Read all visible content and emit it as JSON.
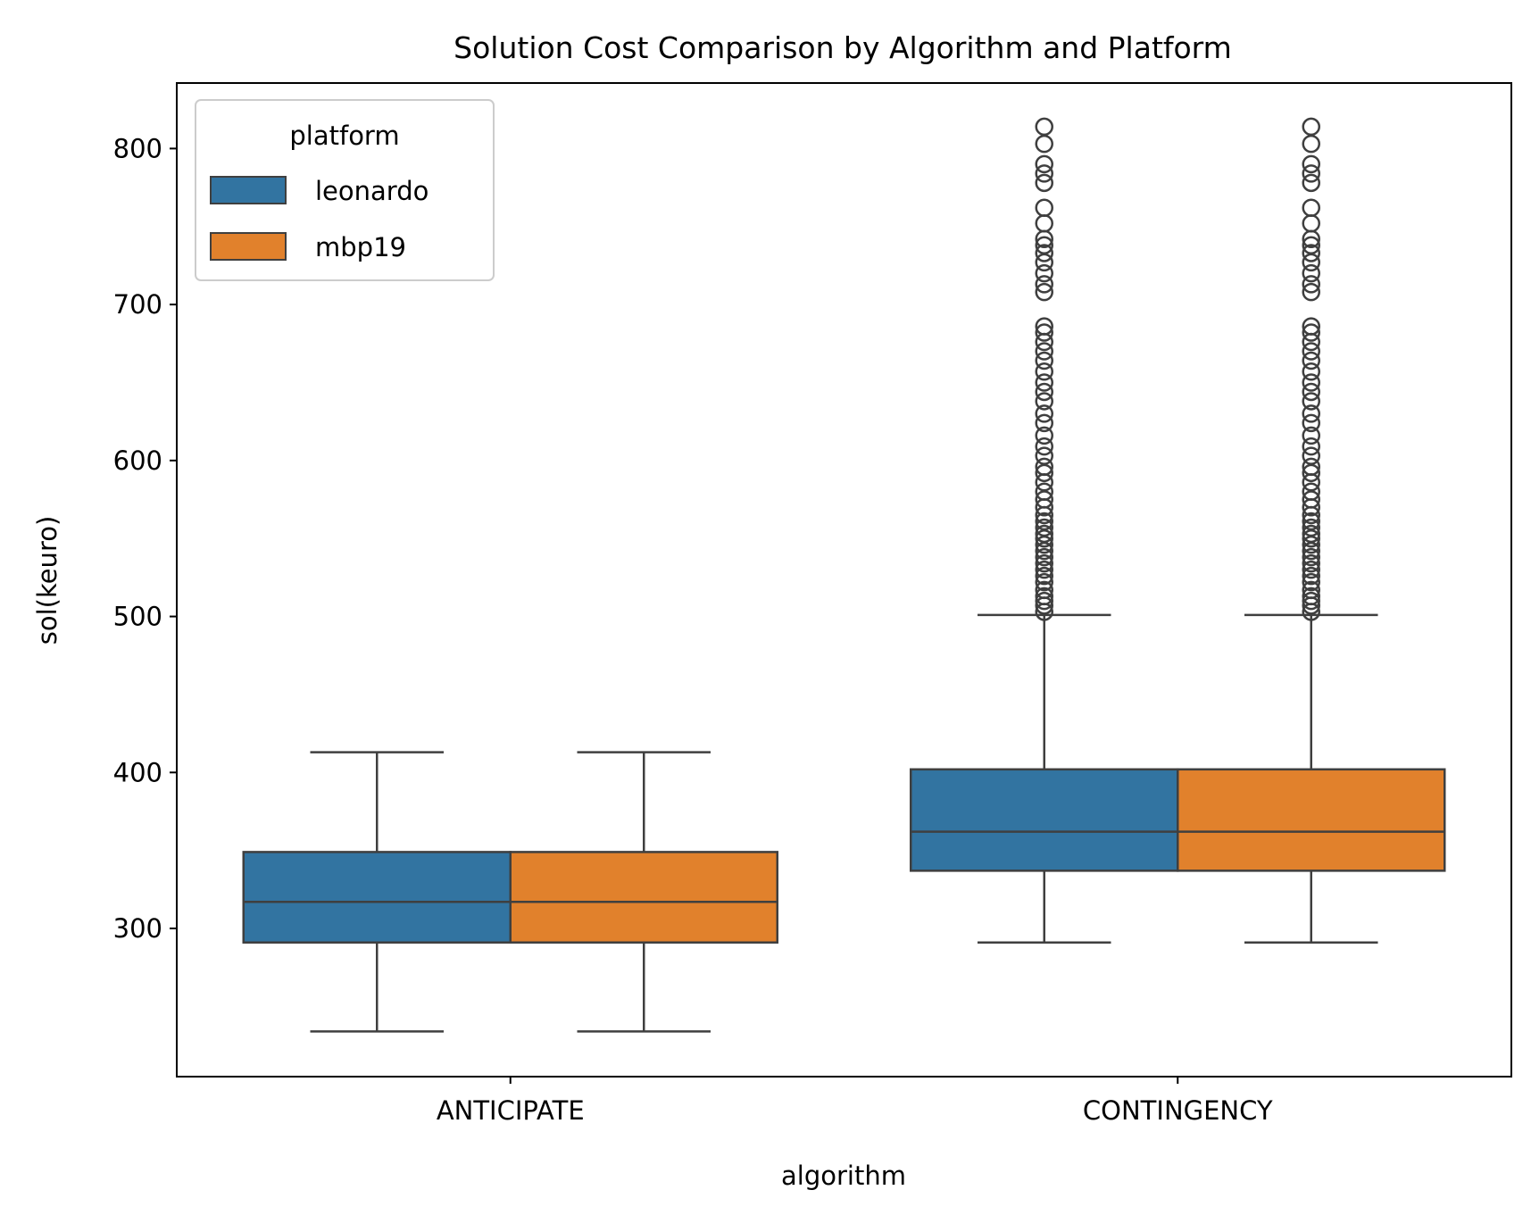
{
  "chart_data": {
    "type": "box",
    "title": "Solution Cost Comparison by Algorithm and Platform",
    "xlabel": "algorithm",
    "ylabel": "sol(keuro)",
    "categories": [
      "ANTICIPATE",
      "CONTINGENCY"
    ],
    "ylim": [
      205,
      842
    ],
    "yticks": [
      300,
      400,
      500,
      600,
      700,
      800
    ],
    "legend": {
      "title": "platform",
      "position": "top-left"
    },
    "series": [
      {
        "name": "leonardo",
        "color": "#3274a1",
        "boxes": [
          {
            "whislo": 234,
            "q1": 291,
            "med": 317,
            "q3": 349,
            "whishi": 413,
            "fliers": []
          },
          {
            "whislo": 291,
            "q1": 337,
            "med": 362,
            "q3": 402,
            "whishi": 501,
            "fliers": [
              503,
              507,
              510,
              513,
              517,
              522,
              526,
              530,
              534,
              538,
              542,
              546,
              550,
              553,
              557,
              561,
              565,
              570,
              575,
              580,
              586,
              592,
              596,
              603,
              609,
              616,
              624,
              630,
              638,
              644,
              650,
              657,
              664,
              670,
              676,
              682,
              686,
              708,
              713,
              720,
              727,
              733,
              738,
              742,
              752,
              762,
              778,
              784,
              790,
              803,
              814
            ]
          }
        ]
      },
      {
        "name": "mbp19",
        "color": "#e1812c",
        "boxes": [
          {
            "whislo": 234,
            "q1": 291,
            "med": 317,
            "q3": 349,
            "whishi": 413,
            "fliers": []
          },
          {
            "whislo": 291,
            "q1": 337,
            "med": 362,
            "q3": 402,
            "whishi": 501,
            "fliers": [
              503,
              507,
              510,
              513,
              517,
              522,
              526,
              530,
              534,
              538,
              542,
              546,
              550,
              553,
              557,
              561,
              565,
              570,
              575,
              580,
              586,
              592,
              596,
              603,
              609,
              616,
              624,
              630,
              638,
              644,
              650,
              657,
              664,
              670,
              676,
              682,
              686,
              708,
              713,
              720,
              727,
              733,
              738,
              742,
              752,
              762,
              778,
              784,
              790,
              803,
              814
            ]
          }
        ]
      }
    ],
    "grid": false
  }
}
